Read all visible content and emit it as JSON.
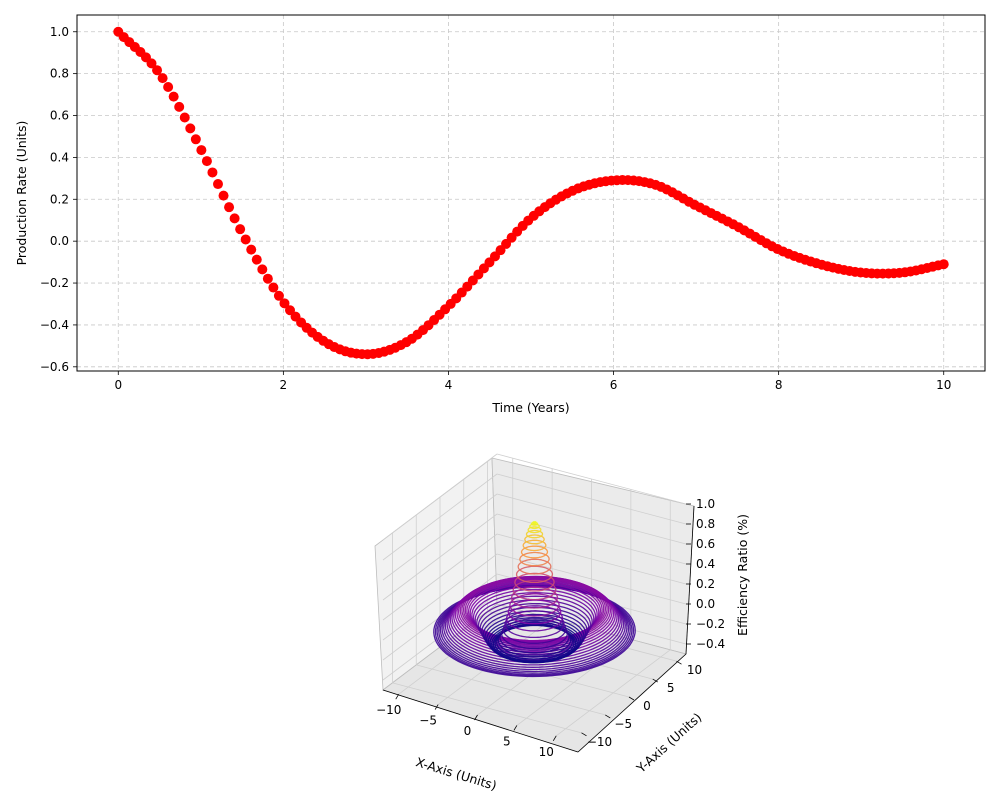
{
  "chart_data": [
    {
      "type": "scatter",
      "title": "",
      "xlabel": "Time (Years)",
      "ylabel": "Production Rate (Units)",
      "xlim": [
        -0.5,
        10.5
      ],
      "ylim": [
        -0.62,
        1.08
      ],
      "xticks": [
        0,
        2,
        4,
        6,
        8,
        10
      ],
      "yticks": [
        -0.6,
        -0.4,
        -0.2,
        0.0,
        0.2,
        0.4,
        0.6,
        0.8,
        1.0
      ],
      "xtick_labels": [
        "0",
        "2",
        "4",
        "6",
        "8",
        "10"
      ],
      "ytick_labels": [
        "−0.6",
        "−0.4",
        "−0.2",
        "0.0",
        "0.2",
        "0.4",
        "0.6",
        "0.8",
        "1.0"
      ],
      "grid": true,
      "marker_color": "#ff0000",
      "x": [
        0.0,
        0.5,
        1.0,
        1.5,
        2.0,
        2.5,
        3.0,
        3.5,
        4.0,
        4.5,
        5.0,
        5.5,
        6.0,
        6.5,
        7.0,
        7.5,
        8.0,
        8.5,
        9.0,
        9.5,
        10.0
      ],
      "y": [
        1.0,
        0.8,
        0.44,
        0.04,
        -0.29,
        -0.48,
        -0.54,
        -0.48,
        -0.31,
        -0.1,
        0.11,
        0.24,
        0.29,
        0.27,
        0.17,
        0.07,
        -0.04,
        -0.11,
        -0.15,
        -0.15,
        -0.11
      ]
    },
    {
      "type": "surface3d",
      "title": "",
      "xlabel": "X-Axis (Units)",
      "ylabel": "Y-Axis (Units)",
      "zlabel": "Efficiency Ratio (%)",
      "xticks": [
        -10,
        -5,
        0,
        5,
        10
      ],
      "yticks": [
        -10,
        -5,
        0,
        5,
        10
      ],
      "zticks": [
        -0.4,
        -0.2,
        0.0,
        0.2,
        0.4,
        0.6,
        0.8,
        1.0
      ],
      "xtick_labels": [
        "−10",
        "−5",
        "0",
        "5",
        "10"
      ],
      "ytick_labels": [
        "−10",
        "−5",
        "0",
        "5",
        "10"
      ],
      "ztick_labels": [
        "−0.4",
        "−0.2",
        "0.0",
        "0.2",
        "0.4",
        "0.6",
        "0.8",
        "1.0"
      ],
      "zlim": [
        -0.5,
        1.0
      ],
      "colormap": "plasma",
      "colormap_stops": [
        "#0d0887",
        "#7e03a8",
        "#cc4778",
        "#f89540",
        "#f0f921"
      ]
    }
  ]
}
